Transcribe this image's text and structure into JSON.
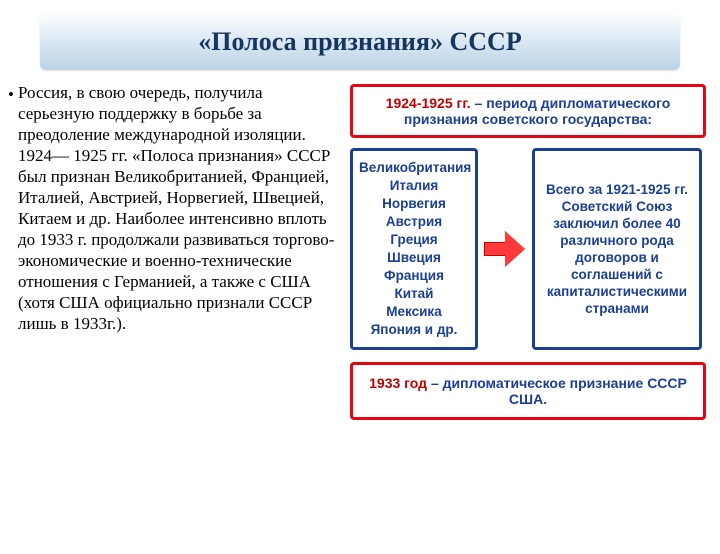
{
  "title": "«Полоса признания» СССР",
  "paragraph": "Россия, в свою очередь, получила серьезную поддержку в борьбе за преодоление международной изоляции. 1924— 1925 гг. «Полоса признания» СССР был признан Великобританией, Францией, Италией, Австрией, Норвегией, Швецией, Китаем и др. Наиболее интенсивно вплоть до 1933 г. продолжали развиваться торгово-экономические и военно-технические отношения с Германией, а также с США (хотя США официально признали СССР лишь в 1933г.).",
  "diagram": {
    "top_box": {
      "highlight": "1924-1925 гг.",
      "rest": " – период дипломатического признания советского государства:",
      "highlight_color": "#c00000",
      "rest_color": "#1b3f93",
      "border_color": "#e30613"
    },
    "countries_box": {
      "items": [
        "Великобритания",
        "Италия",
        "Норвегия",
        "Австрия",
        "Греция",
        "Швеция",
        "Франция",
        "Китай",
        "Мексика",
        "Япония и др."
      ],
      "text_color": "#1b3f93",
      "border_color": "#1b3f93"
    },
    "arrow": {
      "fill": "#ff3a3a",
      "stroke": "#c40000"
    },
    "summary_box": {
      "text": "Всего за 1921-1925 гг. Советский Союз заключил более 40 различного рода договоров и соглашений с капиталистическими странами",
      "text_color": "#1b3f93",
      "border_color": "#1b3f93"
    },
    "bottom_box": {
      "highlight": "1933 год",
      "rest": " – дипломатическое признание СССР США.",
      "highlight_color": "#c00000",
      "rest_color": "#1b3f93",
      "border_color": "#e30613"
    }
  },
  "style": {
    "banner_gradient_top": "#fdfefe",
    "banner_gradient_bottom": "#bcd3e6",
    "title_color": "#17365d",
    "body_font": "Times New Roman",
    "diagram_font": "Arial"
  }
}
